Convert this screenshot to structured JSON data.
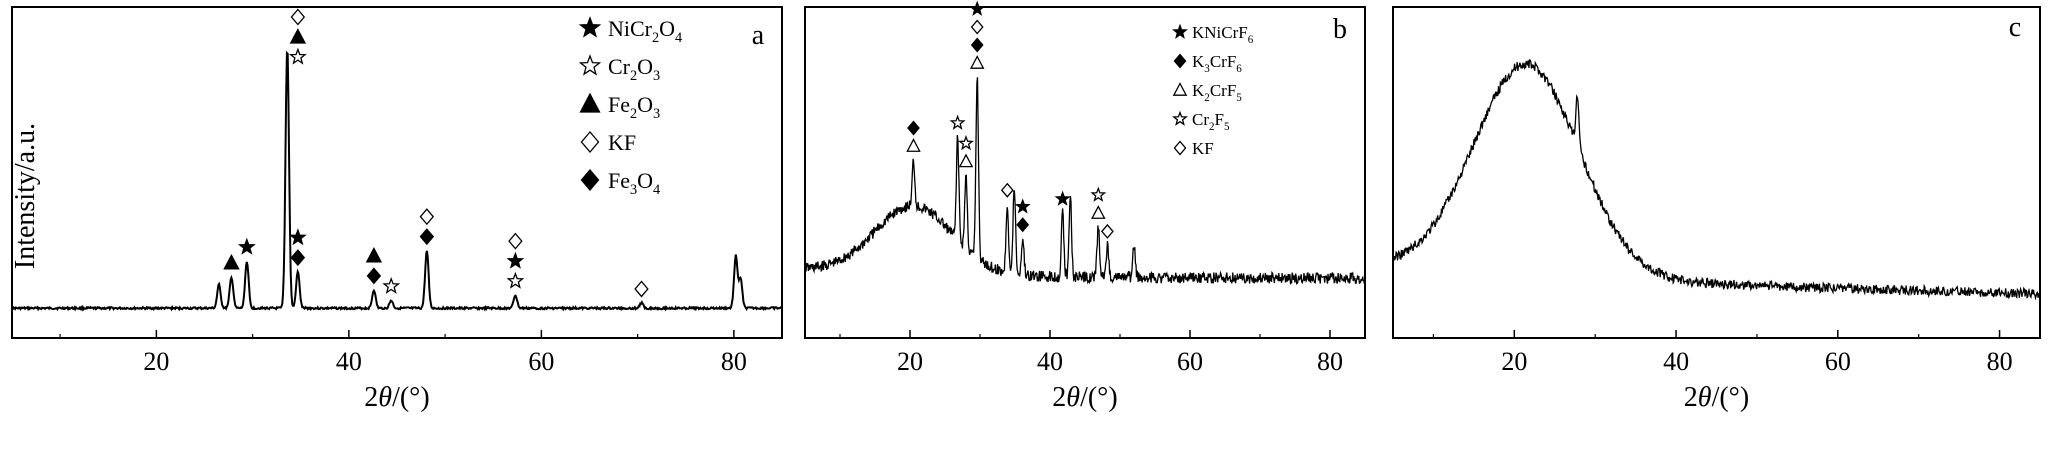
{
  "ylabel": "Intensity/a.u.",
  "chart_data": [
    {
      "type": "line",
      "panel": "a",
      "xlabel_main": "2θ/(°)",
      "xlim": [
        5,
        85
      ],
      "xticks": [
        20,
        40,
        60,
        80
      ],
      "xtick_labels": [
        "20",
        "40",
        "60",
        "80"
      ],
      "legend": [
        {
          "symbol": "star-filled",
          "formula": [
            "NiCr",
            "2",
            "O",
            "4"
          ]
        },
        {
          "symbol": "star-open",
          "formula": [
            "Cr",
            "2",
            "O",
            "3"
          ]
        },
        {
          "symbol": "triangle-filled",
          "formula": [
            "Fe",
            "2",
            "O",
            "3"
          ]
        },
        {
          "symbol": "diamond-open",
          "formula": [
            "KF"
          ]
        },
        {
          "symbol": "diamond-filled",
          "formula": [
            "Fe",
            "3",
            "O",
            "4"
          ]
        }
      ],
      "peaks": [
        {
          "x": 26.5,
          "h": 0.09
        },
        {
          "x": 27.8,
          "h": 0.12
        },
        {
          "x": 29.4,
          "h": 0.18
        },
        {
          "x": 33.6,
          "h": 1.0
        },
        {
          "x": 34.7,
          "h": 0.14
        },
        {
          "x": 42.6,
          "h": 0.07
        },
        {
          "x": 44.4,
          "h": 0.03
        },
        {
          "x": 48.1,
          "h": 0.22
        },
        {
          "x": 57.3,
          "h": 0.05
        },
        {
          "x": 70.4,
          "h": 0.02
        },
        {
          "x": 80.2,
          "h": 0.2
        },
        {
          "x": 80.7,
          "h": 0.11
        }
      ],
      "markers": [
        {
          "x": 27.8,
          "symbols": [
            "triangle-filled"
          ]
        },
        {
          "x": 29.4,
          "symbols": [
            "star-filled"
          ]
        },
        {
          "x": 34.7,
          "symbols": [
            "diamond-filled",
            "star-filled"
          ]
        },
        {
          "x": 34.7,
          "symbols": [
            "star-open",
            "triangle-filled",
            "diamond-open"
          ],
          "top": true
        },
        {
          "x": 42.6,
          "symbols": [
            "diamond-filled",
            "triangle-filled"
          ]
        },
        {
          "x": 44.4,
          "symbols": [
            "star-open"
          ]
        },
        {
          "x": 48.1,
          "symbols": [
            "diamond-filled",
            "diamond-open"
          ]
        },
        {
          "x": 57.3,
          "symbols": [
            "star-open",
            "star-filled",
            "diamond-open"
          ]
        },
        {
          "x": 70.4,
          "symbols": [
            "diamond-open"
          ]
        }
      ]
    },
    {
      "type": "line",
      "panel": "b",
      "xlabel_main": "2θ/(°)",
      "xlim": [
        5,
        85
      ],
      "xticks": [
        20,
        40,
        60,
        80
      ],
      "xtick_labels": [
        "20",
        "40",
        "60",
        "80"
      ],
      "legend": [
        {
          "symbol": "star-filled",
          "formula": [
            "KNiCrF",
            "6"
          ]
        },
        {
          "symbol": "diamond-filled",
          "formula": [
            "K",
            "3",
            "CrF",
            "6"
          ]
        },
        {
          "symbol": "triangle-open",
          "formula": [
            "K",
            "2",
            "CrF",
            "5"
          ]
        },
        {
          "symbol": "star-open",
          "formula": [
            "Cr",
            "2",
            "F",
            "5"
          ]
        },
        {
          "symbol": "diamond-open",
          "formula": [
            "KF"
          ]
        }
      ],
      "hump": {
        "center": 20.5,
        "height": 0.3,
        "width": 5.5
      },
      "peaks": [
        {
          "x": 20.5,
          "h": 0.2
        },
        {
          "x": 26.8,
          "h": 0.45
        },
        {
          "x": 28.0,
          "h": 0.32
        },
        {
          "x": 29.6,
          "h": 0.8
        },
        {
          "x": 33.9,
          "h": 0.3
        },
        {
          "x": 34.9,
          "h": 0.38
        },
        {
          "x": 36.1,
          "h": 0.16
        },
        {
          "x": 41.8,
          "h": 0.28
        },
        {
          "x": 42.9,
          "h": 0.36
        },
        {
          "x": 46.9,
          "h": 0.22
        },
        {
          "x": 48.2,
          "h": 0.14
        },
        {
          "x": 52.0,
          "h": 0.14
        }
      ],
      "markers": [
        {
          "x": 20.5,
          "symbols": [
            "triangle-open",
            "diamond-filled"
          ]
        },
        {
          "x": 26.8,
          "symbols": [
            "star-open"
          ]
        },
        {
          "x": 28.0,
          "symbols": [
            "triangle-open",
            "star-open"
          ]
        },
        {
          "x": 29.6,
          "symbols": [
            "triangle-open",
            "diamond-filled",
            "diamond-open",
            "star-filled"
          ]
        },
        {
          "x": 33.9,
          "symbols": [
            "diamond-open"
          ]
        },
        {
          "x": 36.1,
          "symbols": [
            "diamond-filled",
            "star-filled"
          ]
        },
        {
          "x": 41.8,
          "symbols": [
            "star-filled"
          ]
        },
        {
          "x": 46.9,
          "symbols": [
            "triangle-open",
            "star-open"
          ]
        },
        {
          "x": 48.2,
          "symbols": [
            "diamond-open"
          ]
        }
      ]
    },
    {
      "type": "line",
      "panel": "c",
      "xlabel_main": "2θ/(°)",
      "xlim": [
        5,
        85
      ],
      "xticks": [
        20,
        40,
        60,
        80
      ],
      "xtick_labels": [
        "20",
        "40",
        "60",
        "80"
      ],
      "hump": {
        "center": 21.5,
        "height": 0.85,
        "width": 6.5
      },
      "peaks": [
        {
          "x": 27.8,
          "h": 0.2
        }
      ]
    }
  ]
}
